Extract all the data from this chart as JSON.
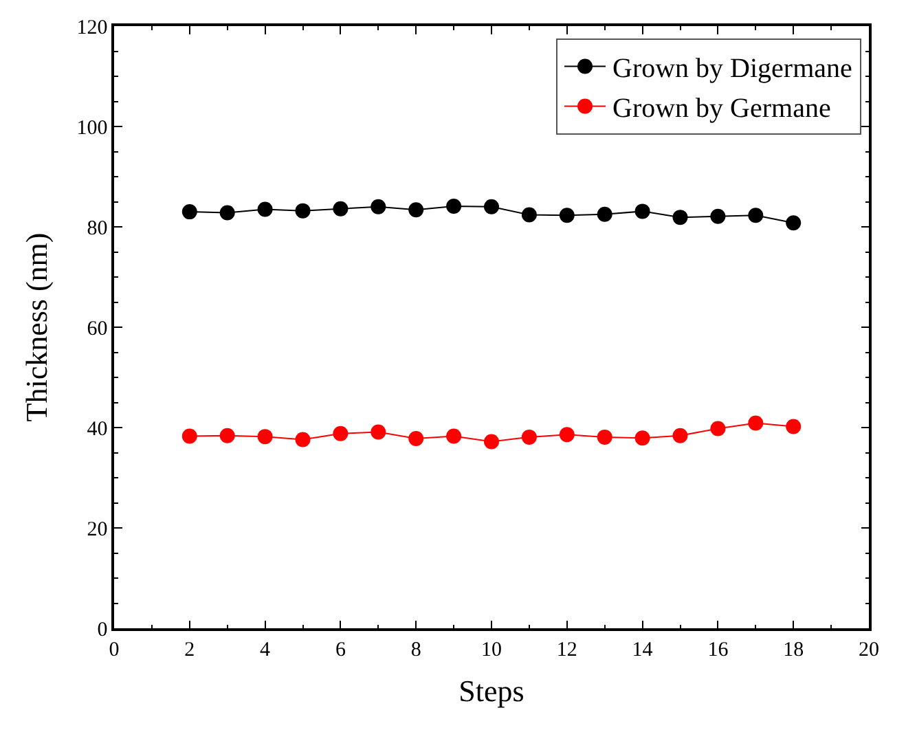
{
  "chart_data": {
    "type": "line",
    "xlabel": "Steps",
    "ylabel": "Thickness (nm)",
    "x": [
      2,
      3,
      4,
      5,
      6,
      7,
      8,
      9,
      10,
      11,
      12,
      13,
      14,
      15,
      16,
      17,
      18
    ],
    "series": [
      {
        "name": "Grown by Digermane",
        "color": "#000000",
        "values": [
          83.0,
          82.8,
          83.5,
          83.2,
          83.6,
          84.0,
          83.4,
          84.1,
          84.0,
          82.4,
          82.3,
          82.5,
          83.1,
          81.9,
          82.1,
          82.3,
          80.8
        ]
      },
      {
        "name": "Grown by Germane",
        "color": "#ff0000",
        "values": [
          38.3,
          38.4,
          38.2,
          37.6,
          38.8,
          39.1,
          37.8,
          38.3,
          37.2,
          38.1,
          38.6,
          38.1,
          37.9,
          38.4,
          39.8,
          40.9,
          40.2
        ]
      }
    ],
    "xlim": [
      0,
      20
    ],
    "xticks": [
      0,
      2,
      4,
      6,
      8,
      10,
      12,
      14,
      16,
      18,
      20
    ],
    "ylim": [
      0,
      120
    ],
    "yticks": [
      0,
      20,
      40,
      60,
      80,
      100,
      120
    ],
    "legend": "top right",
    "marker": "circle",
    "line_style": "solid"
  }
}
